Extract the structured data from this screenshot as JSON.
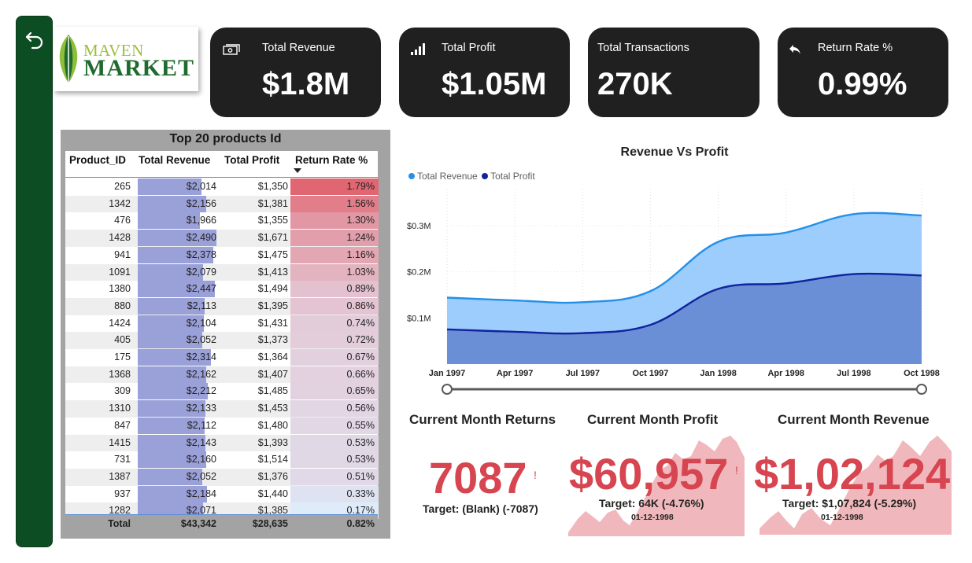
{
  "nav": {
    "back_icon": "back-arrow-icon"
  },
  "logo": {
    "line1": "MAVEN",
    "line2": "MARKET"
  },
  "kpis": [
    {
      "title": "Total Revenue",
      "value": "$1.8M",
      "icon": "cash-icon"
    },
    {
      "title": "Total Profit",
      "value": "$1.05M",
      "icon": "bar-signal-icon"
    },
    {
      "title": "Total Transactions",
      "value": "270K",
      "icon": ""
    },
    {
      "title": "Return Rate %",
      "value": "0.99%",
      "icon": "return-arrow-icon"
    }
  ],
  "table": {
    "title": "Top 20 products Id",
    "columns": [
      "Product_ID",
      "Total Revenue",
      "Total Profit",
      "Return Rate %"
    ],
    "sort_column": "Return Rate %",
    "rows": [
      [
        "265",
        "$2,014",
        "$1,350",
        "1.79%"
      ],
      [
        "1342",
        "$2,156",
        "$1,381",
        "1.56%"
      ],
      [
        "476",
        "$1,966",
        "$1,355",
        "1.30%"
      ],
      [
        "1428",
        "$2,490",
        "$1,671",
        "1.24%"
      ],
      [
        "941",
        "$2,378",
        "$1,475",
        "1.16%"
      ],
      [
        "1091",
        "$2,079",
        "$1,413",
        "1.03%"
      ],
      [
        "1380",
        "$2,447",
        "$1,494",
        "0.89%"
      ],
      [
        "880",
        "$2,113",
        "$1,395",
        "0.86%"
      ],
      [
        "1424",
        "$2,104",
        "$1,431",
        "0.74%"
      ],
      [
        "405",
        "$2,052",
        "$1,373",
        "0.72%"
      ],
      [
        "175",
        "$2,314",
        "$1,364",
        "0.67%"
      ],
      [
        "1368",
        "$2,162",
        "$1,407",
        "0.66%"
      ],
      [
        "309",
        "$2,212",
        "$1,485",
        "0.65%"
      ],
      [
        "1310",
        "$2,133",
        "$1,453",
        "0.56%"
      ],
      [
        "847",
        "$2,112",
        "$1,480",
        "0.55%"
      ],
      [
        "1415",
        "$2,143",
        "$1,393",
        "0.53%"
      ],
      [
        "731",
        "$2,160",
        "$1,514",
        "0.53%"
      ],
      [
        "1387",
        "$2,052",
        "$1,376",
        "0.51%"
      ],
      [
        "937",
        "$2,184",
        "$1,440",
        "0.33%"
      ],
      [
        "1282",
        "$2,071",
        "$1,385",
        "0.17%"
      ]
    ],
    "total": [
      "Total",
      "$43,342",
      "$28,635",
      "0.82%"
    ]
  },
  "chart_data": {
    "type": "area",
    "title": "Revenue Vs Profit",
    "x": [
      "Jan 1997",
      "Apr 1997",
      "Jul 1997",
      "Oct 1997",
      "Jan 1998",
      "Apr 1998",
      "Jul 1998",
      "Oct 1998"
    ],
    "series": [
      {
        "name": "Total Revenue",
        "values": [
          0.144,
          0.138,
          0.134,
          0.158,
          0.265,
          0.285,
          0.325,
          0.322
        ]
      },
      {
        "name": "Total Profit",
        "values": [
          0.075,
          0.07,
          0.067,
          0.085,
          0.163,
          0.175,
          0.195,
          0.192
        ]
      }
    ],
    "y_ticks": [
      "$0.1M",
      "$0.2M",
      "$0.3M"
    ],
    "ylim": [
      0,
      0.38
    ],
    "y_unit": "$M",
    "legend_position": "top-left",
    "grid": "vertical dotted",
    "colors": {
      "revenue_line": "#2490ea",
      "revenue_fill": "#9ccdfc",
      "profit_line": "#12239e",
      "profit_fill": "#6b8fd6"
    }
  },
  "bottom_cards": [
    {
      "title": "Current Month Returns",
      "value": "7087",
      "target": "Target: (Blank) (-7087)",
      "date": ""
    },
    {
      "title": "Current Month Profit",
      "value": "$60,957",
      "target": "Target: 64K (-4.76%)",
      "date": "01-12-1998"
    },
    {
      "title": "Current Month Revenue",
      "value": "$1,02,124",
      "target": "Target: $1,07,824 (-5.29%)",
      "date": "01-12-1998"
    }
  ],
  "alert_mark": "!",
  "colors": {
    "accent_green": "#0d4d24",
    "kpi_bg": "#202020",
    "alert_red": "#d64550"
  }
}
